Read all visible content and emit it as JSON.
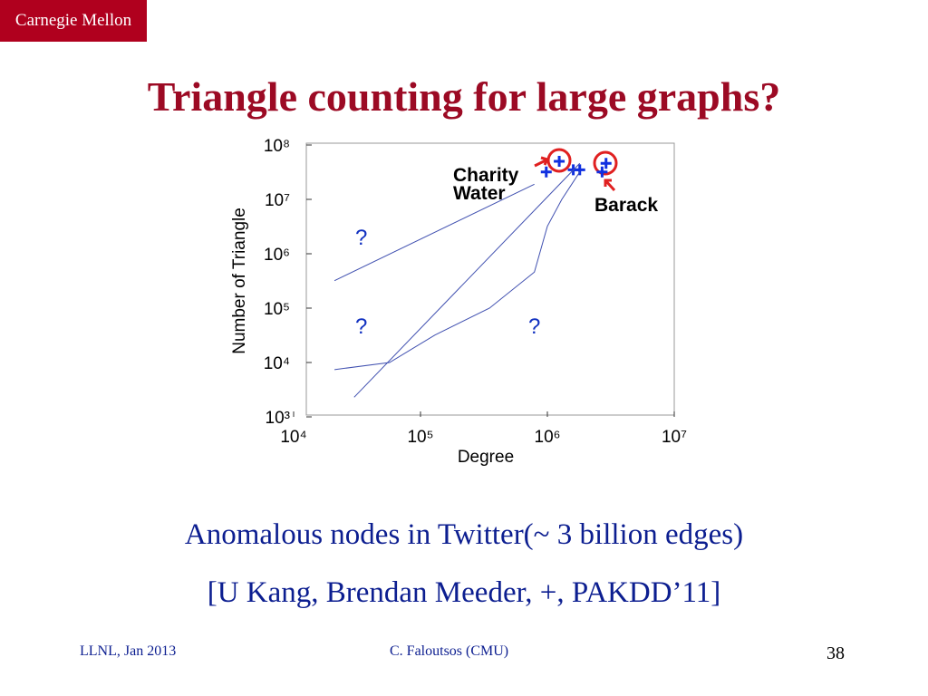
{
  "header": {
    "logo": "Carnegie Mellon",
    "title": "Triangle counting for large graphs?"
  },
  "chart_data": {
    "type": "scatter",
    "xlabel": "Degree",
    "ylabel": "Number of Triangle",
    "log_x": true,
    "log_y": true,
    "xlim": [
      10000,
      10000000
    ],
    "ylim": [
      1000,
      100000000
    ],
    "xticks": [
      {
        "value": 10000,
        "label": "10⁴"
      },
      {
        "value": 100000,
        "label": "10⁵"
      },
      {
        "value": 1000000,
        "label": "10⁶"
      },
      {
        "value": 10000000,
        "label": "10⁷"
      }
    ],
    "yticks": [
      {
        "value": 1000,
        "label": "10³"
      },
      {
        "value": 10000,
        "label": "10⁴"
      },
      {
        "value": 100000,
        "label": "10⁵"
      },
      {
        "value": 1000000,
        "label": "10⁶"
      },
      {
        "value": 10000000,
        "label": "10⁷"
      },
      {
        "value": 100000000,
        "label": "10⁸"
      }
    ],
    "series": [
      {
        "color": "#1030e0",
        "marker": "+",
        "x": [
          980000,
          1240000,
          1600000,
          1800000,
          2700000,
          2900000
        ],
        "values": [
          32000000,
          50000000,
          35000000,
          35000000,
          32000000,
          46000000
        ]
      },
      {
        "color": "#4050b0",
        "marker": "line",
        "x": [
          21000,
          790000
        ],
        "values": [
          320000,
          19000000
        ]
      },
      {
        "color": "#4050b0",
        "marker": "line",
        "x": [
          30000,
          1800000
        ],
        "values": [
          2300,
          46000000
        ]
      },
      {
        "color": "#4050b0",
        "marker": "line",
        "x": [
          21000,
          57000,
          130000,
          350000,
          790000,
          1000000,
          1300000,
          1800000
        ],
        "values": [
          7400,
          10000,
          32000,
          100000,
          460000,
          3200000,
          10000000,
          32000000
        ]
      }
    ],
    "annotations": [
      "Charity",
      "Water",
      "Barack",
      "?",
      "?",
      "?"
    ]
  },
  "caption": [
    "Anomalous nodes in Twitter(~ 3 billion edges)",
    "[U Kang, Brendan Meeder, +, PAKDD’11]"
  ],
  "footer": {
    "left": "LLNL, Jan 2013",
    "center": "C. Faloutsos (CMU)",
    "page": "38"
  }
}
